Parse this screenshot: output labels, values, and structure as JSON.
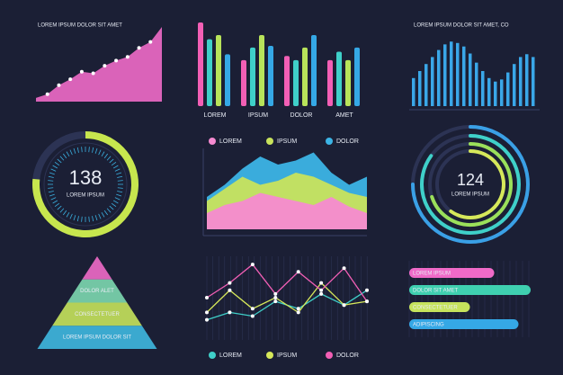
{
  "chart_data": [
    {
      "type": "area",
      "title": "LOREM IPSUM DOLOR SIT AMET",
      "color": "#f06ac8",
      "ylim": [
        0,
        100
      ],
      "values": [
        5,
        10,
        22,
        30,
        40,
        38,
        48,
        55,
        60,
        72,
        80,
        100
      ]
    },
    {
      "type": "bar",
      "categories": [
        "LOREM",
        "IPSUM",
        "DOLOR",
        "AMET"
      ],
      "ylim": [
        0,
        100
      ],
      "series": [
        {
          "color": "#f25fb5",
          "values": [
            100,
            55,
            60,
            55
          ]
        },
        {
          "color": "#3fd0c9",
          "values": [
            80,
            70,
            55,
            65
          ]
        },
        {
          "color": "#b8e35a",
          "values": [
            85,
            85,
            70,
            55
          ]
        },
        {
          "color": "#35a8e6",
          "values": [
            62,
            72,
            85,
            70
          ]
        }
      ]
    },
    {
      "type": "bar",
      "title": "LOREM IPSUM DOLOR SIT AMET, CO",
      "color": "#3aa7e8",
      "ylim": [
        0,
        100
      ],
      "values": [
        40,
        50,
        60,
        70,
        80,
        88,
        92,
        90,
        85,
        75,
        62,
        50,
        40,
        35,
        38,
        48,
        60,
        70,
        74,
        70
      ]
    },
    {
      "type": "gauge",
      "value": 138,
      "subtitle": "LOREM IPSUM",
      "ylim": [
        0,
        180
      ],
      "color": "#c7e64e"
    },
    {
      "type": "area",
      "ylim": [
        0,
        100
      ],
      "series": [
        {
          "name": "DOLOR",
          "color": "#3cb4e6",
          "values": [
            40,
            55,
            75,
            90,
            80,
            85,
            95,
            70,
            55,
            65
          ]
        },
        {
          "name": "IPSUM",
          "color": "#c8e35c",
          "values": [
            35,
            50,
            65,
            55,
            60,
            70,
            65,
            55,
            45,
            40
          ]
        },
        {
          "name": "LOREM",
          "color": "#f58ad0",
          "values": [
            20,
            30,
            35,
            45,
            40,
            35,
            30,
            40,
            28,
            20
          ]
        }
      ]
    },
    {
      "type": "rings",
      "value": 124,
      "subtitle": "LOREM IPSUM",
      "ylim": [
        0,
        100
      ],
      "series": [
        {
          "color": "#3aa0e6",
          "values": [
            75
          ]
        },
        {
          "color": "#3fd0c9",
          "values": [
            85
          ]
        },
        {
          "color": "#9be05a",
          "values": [
            70
          ]
        },
        {
          "color": "#d6e85a",
          "values": [
            60
          ]
        }
      ]
    },
    {
      "type": "pyramid",
      "levels": [
        {
          "label": null,
          "color": "#f06ac8"
        },
        {
          "label": "DOLOR ALET",
          "color": "#7dd8b0"
        },
        {
          "label": "CONSECTETUER",
          "color": "#c6e35c"
        },
        {
          "label": "LOREM IPSUM DOLOR SIT",
          "color": "#3fb8e0"
        }
      ]
    },
    {
      "type": "line",
      "ylim": [
        0,
        100
      ],
      "series": [
        {
          "name": "LOREM",
          "color": "#3fd0c9",
          "values": [
            20,
            30,
            25,
            45,
            35,
            55,
            40,
            60
          ]
        },
        {
          "name": "IPSUM",
          "color": "#d6e85a",
          "values": [
            30,
            60,
            35,
            50,
            30,
            70,
            40,
            45
          ]
        },
        {
          "name": "DOLOR",
          "color": "#f25fb5",
          "values": [
            50,
            70,
            95,
            55,
            85,
            60,
            90,
            45
          ]
        }
      ]
    },
    {
      "type": "hbar",
      "xlim": [
        0,
        100
      ],
      "categories": [
        "LOREM IPSUM",
        "DOLOR SIT AMET",
        "CONSECTETUER",
        "ADIPISCING"
      ],
      "colors": [
        "#f06ac8",
        "#3fd0b0",
        "#c6e35c",
        "#35a8e6"
      ],
      "values": [
        70,
        100,
        50,
        90
      ]
    }
  ]
}
